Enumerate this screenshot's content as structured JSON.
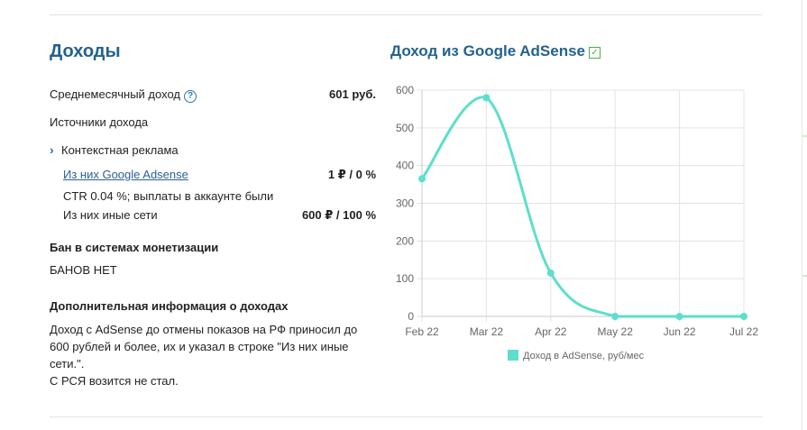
{
  "income": {
    "title": "Доходы",
    "avg_label": "Среднемесячный доход",
    "avg_value": "601 руб.",
    "sources_label": "Источники дохода",
    "context_ads_label": "Контекстная реклама",
    "google_link": "Из них Google Adsense",
    "google_value": "1 ₽  / 0 %",
    "ctr_text": "CTR 0.04 %; выплаты в аккаунте были",
    "other_label": "Из них иные сети",
    "other_value": "600 ₽  / 100 %",
    "ban_title": "Бан в системах монетизации",
    "ban_value": "БАНОВ НЕТ",
    "extra_title": "Дополнительная информация о доходах",
    "extra_lines": [
      "Доход с AdSense до отмены показов на РФ приносил до",
      "600 рублей и более, их и указал в строке \"Из них иные",
      "сети.\".",
      "С РСЯ возится не стал."
    ]
  },
  "chart_title": "Доход из Google AdSense",
  "chart_data": {
    "type": "line",
    "categories": [
      "Feb 22",
      "Mar 22",
      "Apr 22",
      "May 22",
      "Jun 22",
      "Jul 22"
    ],
    "series": [
      {
        "name": "Доход в AdSense, руб/мес",
        "values": [
          365,
          580,
          115,
          0,
          0,
          0
        ],
        "color": "#5ddfcb"
      }
    ],
    "yticks": [
      0,
      100,
      200,
      300,
      400,
      500,
      600
    ],
    "ylim": [
      0,
      600
    ],
    "grid": true,
    "legend": "bottom"
  },
  "colors": {
    "heading": "#23628f",
    "link": "#2a5f94",
    "line": "#5ddfcb"
  }
}
